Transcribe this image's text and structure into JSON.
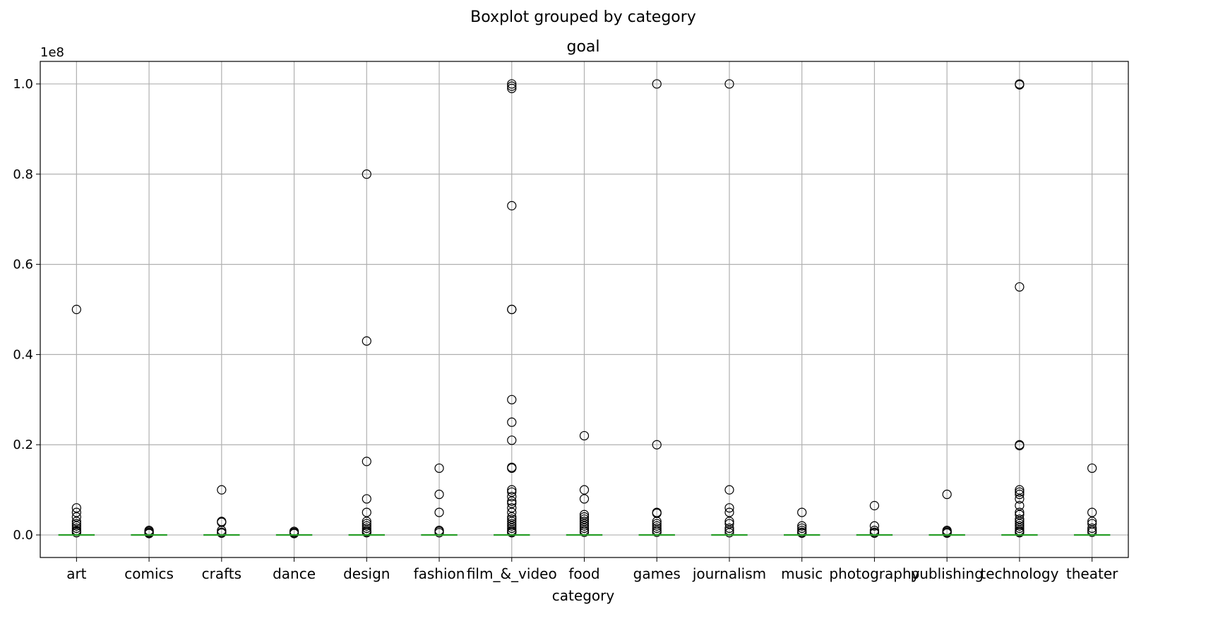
{
  "chart_data": {
    "type": "box",
    "suptitle": "Boxplot grouped by category",
    "title": "goal",
    "xlabel": "category",
    "ylabel": "",
    "y_offset_label": "1e8",
    "y_scale_factor": 100000000,
    "ylim": [
      -0.05,
      1.05
    ],
    "yticks": [
      0.0,
      0.2,
      0.4,
      0.6,
      0.8,
      1.0
    ],
    "ytick_labels": [
      "0.0",
      "0.2",
      "0.4",
      "0.6",
      "0.8",
      "1.0"
    ],
    "grid": true,
    "colors": {
      "median": "#2ca02c",
      "box": "#1f77b4",
      "flier": "#000000",
      "grid": "#b0b0b0"
    },
    "categories": [
      "art",
      "comics",
      "crafts",
      "dance",
      "design",
      "fashion",
      "film_&_video",
      "food",
      "games",
      "journalism",
      "music",
      "photography",
      "publishing",
      "technology",
      "theater"
    ],
    "series": [
      {
        "category": "art",
        "median": 0.0,
        "fliers": [
          0.5,
          0.06,
          0.05,
          0.04,
          0.03,
          0.025,
          0.02,
          0.015,
          0.01,
          0.008,
          0.005
        ]
      },
      {
        "category": "comics",
        "median": 0.0,
        "fliers": [
          0.01,
          0.008,
          0.006,
          0.004,
          0.003
        ]
      },
      {
        "category": "crafts",
        "median": 0.0,
        "fliers": [
          0.1,
          0.03,
          0.028,
          0.01,
          0.006,
          0.004
        ]
      },
      {
        "category": "dance",
        "median": 0.0,
        "fliers": [
          0.008,
          0.006,
          0.004,
          0.003
        ]
      },
      {
        "category": "design",
        "median": 0.0,
        "fliers": [
          0.8,
          0.43,
          0.163,
          0.08,
          0.05,
          0.03,
          0.025,
          0.02,
          0.015,
          0.01,
          0.007,
          0.005
        ]
      },
      {
        "category": "fashion",
        "median": 0.0,
        "fliers": [
          0.148,
          0.09,
          0.05,
          0.01,
          0.008,
          0.005
        ]
      },
      {
        "category": "film_&_video",
        "median": 0.0,
        "fliers": [
          1.0,
          0.995,
          0.99,
          0.73,
          0.5,
          0.5,
          0.3,
          0.25,
          0.21,
          0.15,
          0.148,
          0.1,
          0.095,
          0.085,
          0.075,
          0.07,
          0.06,
          0.05,
          0.04,
          0.035,
          0.03,
          0.025,
          0.02,
          0.015,
          0.01,
          0.007,
          0.005
        ]
      },
      {
        "category": "food",
        "median": 0.0,
        "fliers": [
          0.22,
          0.1,
          0.08,
          0.045,
          0.04,
          0.035,
          0.03,
          0.025,
          0.02,
          0.015,
          0.01,
          0.006
        ]
      },
      {
        "category": "games",
        "median": 0.0,
        "fliers": [
          1.0,
          0.2,
          0.05,
          0.048,
          0.03,
          0.025,
          0.02,
          0.015,
          0.01,
          0.006
        ]
      },
      {
        "category": "journalism",
        "median": 0.0,
        "fliers": [
          1.0,
          0.1,
          0.06,
          0.05,
          0.03,
          0.025,
          0.015,
          0.01,
          0.005
        ]
      },
      {
        "category": "music",
        "median": 0.0,
        "fliers": [
          0.05,
          0.02,
          0.015,
          0.01,
          0.006,
          0.004
        ]
      },
      {
        "category": "photography",
        "median": 0.0,
        "fliers": [
          0.065,
          0.02,
          0.01,
          0.006,
          0.004
        ]
      },
      {
        "category": "publishing",
        "median": 0.0,
        "fliers": [
          0.09,
          0.01,
          0.008,
          0.006,
          0.004
        ]
      },
      {
        "category": "technology",
        "median": 0.0,
        "fliers": [
          1.0,
          0.998,
          0.55,
          0.2,
          0.198,
          0.1,
          0.095,
          0.09,
          0.08,
          0.065,
          0.05,
          0.045,
          0.035,
          0.03,
          0.025,
          0.02,
          0.015,
          0.01,
          0.007,
          0.005
        ]
      },
      {
        "category": "theater",
        "median": 0.0,
        "fliers": [
          0.148,
          0.05,
          0.03,
          0.025,
          0.015,
          0.01,
          0.006
        ]
      }
    ]
  }
}
